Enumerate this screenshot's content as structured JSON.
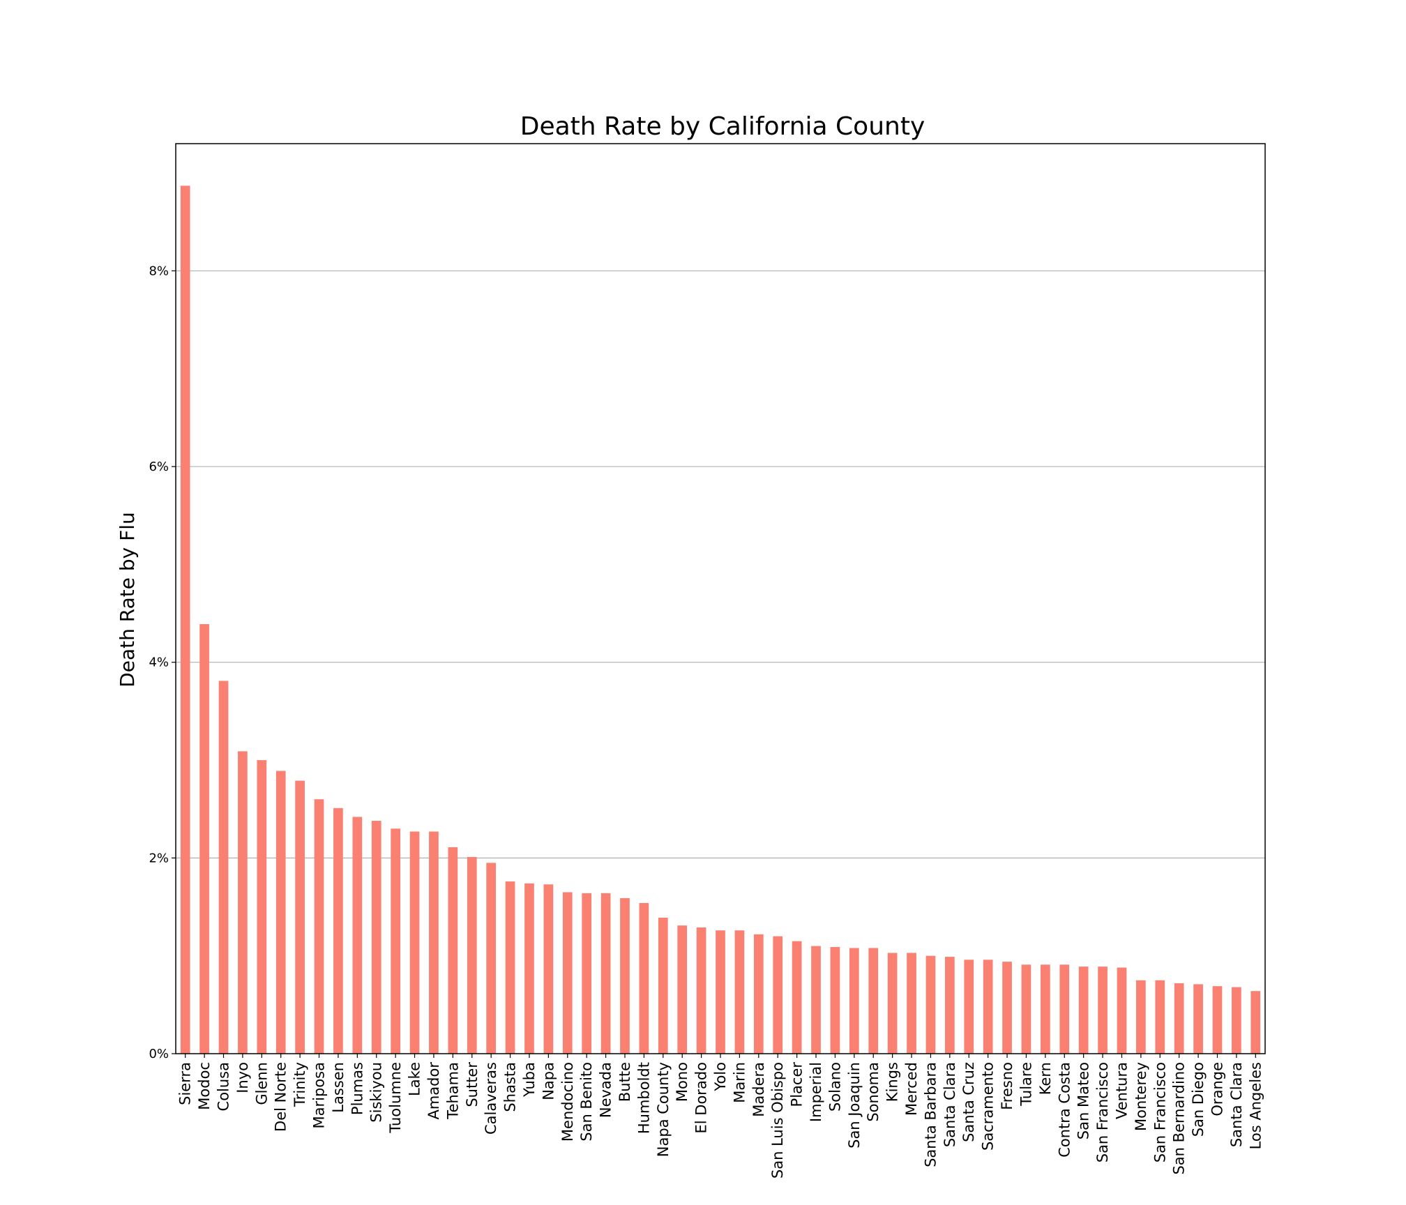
{
  "chart_data": {
    "type": "bar",
    "title": "Death Rate by California County",
    "xlabel": "",
    "ylabel": "Death Rate by Flu",
    "ylim": [
      0,
      9.3
    ],
    "yticks": [
      0,
      2,
      4,
      6,
      8
    ],
    "ytick_labels": [
      "0%",
      "2%",
      "4%",
      "6%",
      "8%"
    ],
    "grid": "horizontal",
    "bar_color": "#fa8072",
    "categories": [
      "Sierra",
      "Modoc",
      "Colusa",
      "Inyo",
      "Glenn",
      "Del Norte",
      "Trinity",
      "Mariposa",
      "Lassen",
      "Plumas",
      "Siskiyou",
      "Tuolumne",
      "Lake",
      "Amador",
      "Tehama",
      "Sutter",
      "Calaveras",
      "Shasta",
      "Yuba",
      "Napa",
      "Mendocino",
      "San Benito",
      "Nevada",
      "Butte",
      "Humboldt",
      "Napa County",
      "Mono",
      "El Dorado",
      "Yolo",
      "Marin",
      "Madera",
      "San Luis Obispo",
      "Placer",
      "Imperial",
      "Solano",
      "San Joaquin",
      "Sonoma",
      "Kings",
      "Merced",
      "Santa Barbara",
      "Santa Clara",
      "Santa Cruz",
      "Sacramento",
      "Fresno",
      "Tulare",
      "Kern",
      "Contra Costa",
      "San Mateo",
      "San Francisco",
      "Ventura",
      "Monterey",
      "San Francisco",
      "San Bernardino",
      "San Diego",
      "Orange",
      "Santa Clara",
      "Los Angeles"
    ],
    "values": [
      8.87,
      4.39,
      3.81,
      3.09,
      3.0,
      2.89,
      2.79,
      2.6,
      2.51,
      2.42,
      2.38,
      2.3,
      2.27,
      2.27,
      2.11,
      2.01,
      1.95,
      1.76,
      1.74,
      1.73,
      1.65,
      1.64,
      1.64,
      1.59,
      1.54,
      1.39,
      1.31,
      1.29,
      1.26,
      1.26,
      1.22,
      1.2,
      1.15,
      1.1,
      1.09,
      1.08,
      1.08,
      1.03,
      1.03,
      1.0,
      0.99,
      0.96,
      0.96,
      0.94,
      0.91,
      0.91,
      0.91,
      0.89,
      0.89,
      0.88,
      0.75,
      0.75,
      0.72,
      0.71,
      0.69,
      0.68,
      0.64
    ]
  }
}
